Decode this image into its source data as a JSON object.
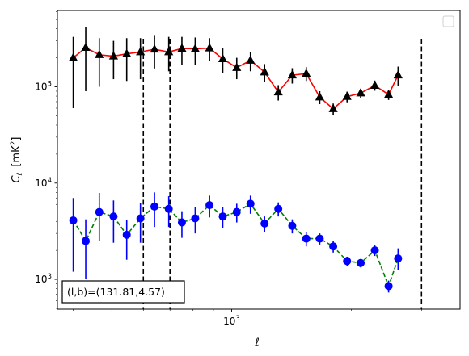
{
  "chart_data": {
    "type": "line",
    "x_scale": "log",
    "y_scale": "log",
    "xlabel_main": "ℓ",
    "ylabel_main": "C",
    "ylabel_sub": "ℓ",
    "ylabel_unit": "[mK",
    "ylabel_unit_sup": "2",
    "ylabel_unit_close": "]",
    "xlim": [
      365,
      3750
    ],
    "ylim": [
      490,
      620000
    ],
    "x_ticks": [
      {
        "value": 1000,
        "base": "10",
        "exp": "3"
      }
    ],
    "y_ticks": [
      {
        "value": 1000,
        "base": "10",
        "exp": "3"
      },
      {
        "value": 10000,
        "base": "10",
        "exp": "4"
      },
      {
        "value": 100000,
        "base": "10",
        "exp": "5"
      }
    ],
    "vlines": [
      600,
      700,
      3000
    ],
    "annotation": "(l,b)=(131.81,4.57)",
    "legend": "top-right",
    "grid": false,
    "series": [
      {
        "color": "#ff0000",
        "marker": "triangle",
        "marker_color": "#000000",
        "line_style": "solid",
        "points": [
          {
            "x": 400,
            "y": 200000,
            "lo": 60000,
            "hi": 330000
          },
          {
            "x": 430,
            "y": 255000,
            "lo": 90000,
            "hi": 420000
          },
          {
            "x": 465,
            "y": 215000,
            "lo": 100000,
            "hi": 320000
          },
          {
            "x": 505,
            "y": 208000,
            "lo": 120000,
            "hi": 300000
          },
          {
            "x": 545,
            "y": 220000,
            "lo": 115000,
            "hi": 320000
          },
          {
            "x": 590,
            "y": 230000,
            "lo": 120000,
            "hi": 320000
          },
          {
            "x": 640,
            "y": 245000,
            "lo": 155000,
            "hi": 345000
          },
          {
            "x": 695,
            "y": 230000,
            "lo": 145000,
            "hi": 330000
          },
          {
            "x": 750,
            "y": 250000,
            "lo": 170000,
            "hi": 330000
          },
          {
            "x": 810,
            "y": 248000,
            "lo": 170000,
            "hi": 325000
          },
          {
            "x": 880,
            "y": 252000,
            "lo": 185000,
            "hi": 320000
          },
          {
            "x": 950,
            "y": 195000,
            "lo": 140000,
            "hi": 250000
          },
          {
            "x": 1030,
            "y": 158000,
            "lo": 120000,
            "hi": 200000
          },
          {
            "x": 1115,
            "y": 188000,
            "lo": 145000,
            "hi": 230000
          },
          {
            "x": 1210,
            "y": 142000,
            "lo": 112000,
            "hi": 172000
          },
          {
            "x": 1310,
            "y": 88000,
            "lo": 72000,
            "hi": 104000
          },
          {
            "x": 1420,
            "y": 132000,
            "lo": 108000,
            "hi": 156000
          },
          {
            "x": 1540,
            "y": 137000,
            "lo": 115000,
            "hi": 160000
          },
          {
            "x": 1665,
            "y": 78000,
            "lo": 66000,
            "hi": 90000
          },
          {
            "x": 1800,
            "y": 59000,
            "lo": 51000,
            "hi": 67000
          },
          {
            "x": 1950,
            "y": 79000,
            "lo": 69000,
            "hi": 89000
          },
          {
            "x": 2110,
            "y": 86000,
            "lo": 77000,
            "hi": 95000
          },
          {
            "x": 2290,
            "y": 103000,
            "lo": 91000,
            "hi": 116000
          },
          {
            "x": 2480,
            "y": 83000,
            "lo": 73000,
            "hi": 93000
          },
          {
            "x": 2620,
            "y": 132000,
            "lo": 103000,
            "hi": 162000
          }
        ]
      },
      {
        "color": "#008000",
        "marker": "circle",
        "marker_color": "#0000ff",
        "line_style": "dashed",
        "points": [
          {
            "x": 400,
            "y": 4100,
            "lo": 1200,
            "hi": 7000
          },
          {
            "x": 430,
            "y": 2500,
            "lo": 1000,
            "hi": 4200
          },
          {
            "x": 465,
            "y": 5000,
            "lo": 2500,
            "hi": 7900
          },
          {
            "x": 505,
            "y": 4500,
            "lo": 2400,
            "hi": 6600
          },
          {
            "x": 545,
            "y": 2900,
            "lo": 1600,
            "hi": 4100
          },
          {
            "x": 590,
            "y": 4300,
            "lo": 2400,
            "hi": 6200
          },
          {
            "x": 640,
            "y": 5700,
            "lo": 3500,
            "hi": 8000
          },
          {
            "x": 695,
            "y": 5400,
            "lo": 3500,
            "hi": 7300
          },
          {
            "x": 750,
            "y": 3900,
            "lo": 2700,
            "hi": 5100
          },
          {
            "x": 810,
            "y": 4300,
            "lo": 3000,
            "hi": 5600
          },
          {
            "x": 880,
            "y": 5900,
            "lo": 4400,
            "hi": 7400
          },
          {
            "x": 950,
            "y": 4500,
            "lo": 3400,
            "hi": 5600
          },
          {
            "x": 1030,
            "y": 5000,
            "lo": 3900,
            "hi": 6100
          },
          {
            "x": 1115,
            "y": 6100,
            "lo": 4800,
            "hi": 7400
          },
          {
            "x": 1210,
            "y": 3800,
            "lo": 3100,
            "hi": 4500
          },
          {
            "x": 1310,
            "y": 5400,
            "lo": 4500,
            "hi": 6300
          },
          {
            "x": 1420,
            "y": 3600,
            "lo": 3000,
            "hi": 4200
          },
          {
            "x": 1540,
            "y": 2650,
            "lo": 2200,
            "hi": 3100
          },
          {
            "x": 1665,
            "y": 2650,
            "lo": 2300,
            "hi": 3000
          },
          {
            "x": 1800,
            "y": 2200,
            "lo": 1900,
            "hi": 2500
          },
          {
            "x": 1950,
            "y": 1550,
            "lo": 1380,
            "hi": 1720
          },
          {
            "x": 2110,
            "y": 1480,
            "lo": 1330,
            "hi": 1630
          },
          {
            "x": 2290,
            "y": 2000,
            "lo": 1750,
            "hi": 2250
          },
          {
            "x": 2480,
            "y": 850,
            "lo": 730,
            "hi": 970
          },
          {
            "x": 2620,
            "y": 1650,
            "lo": 1250,
            "hi": 2100
          }
        ]
      }
    ]
  }
}
